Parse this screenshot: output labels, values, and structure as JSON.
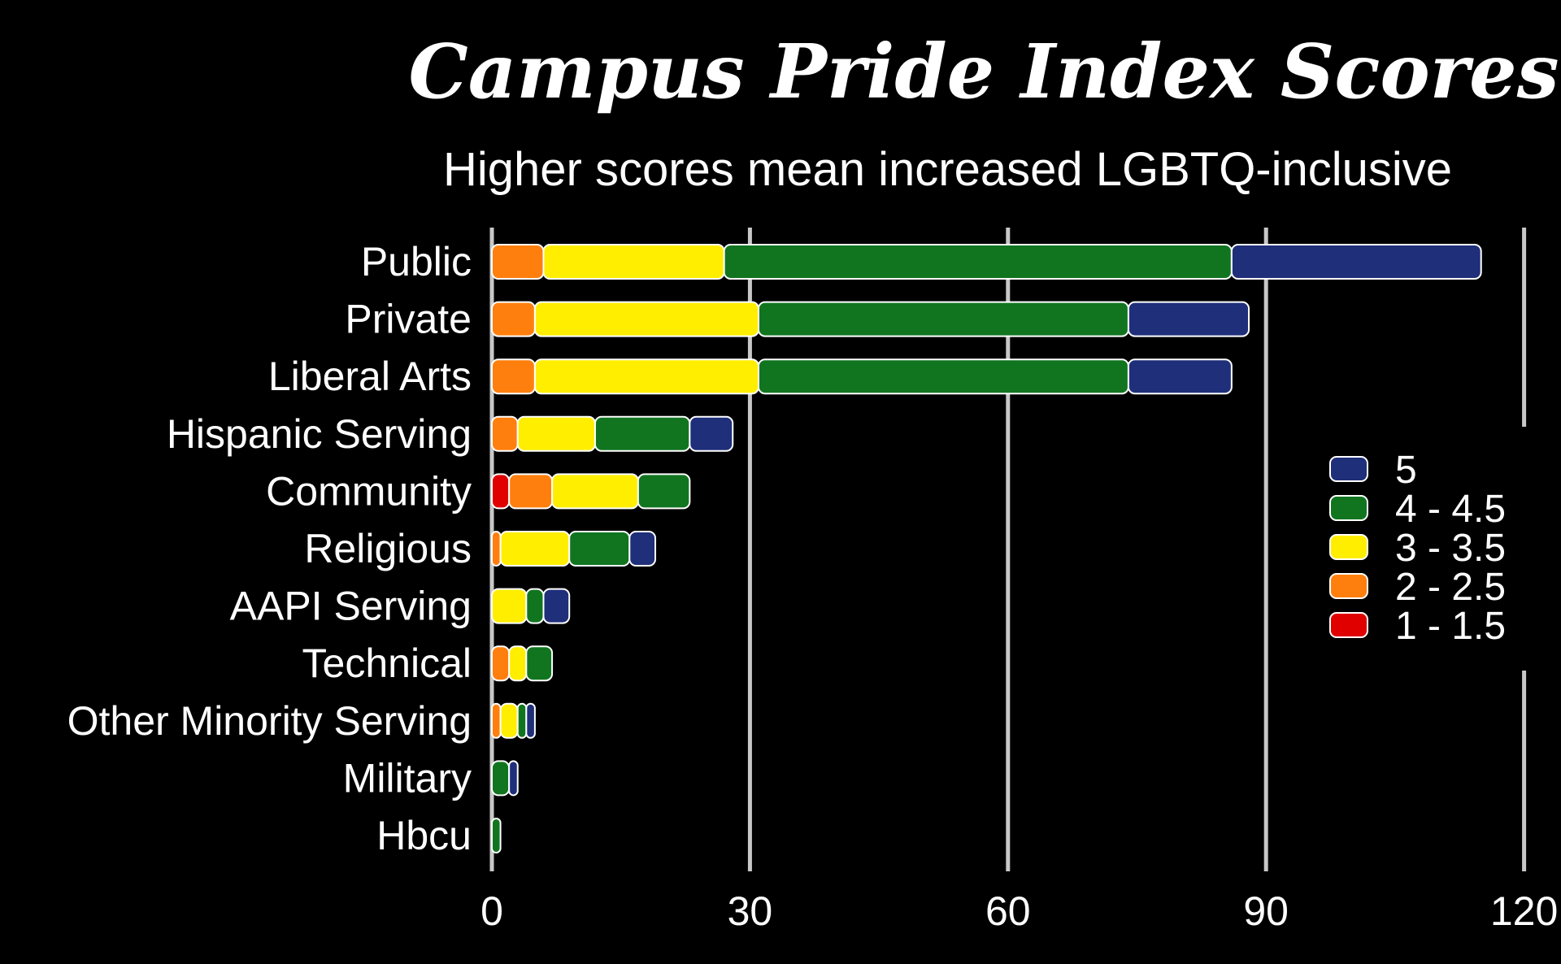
{
  "chart_data": {
    "type": "bar",
    "orientation": "horizontal",
    "stacked": true,
    "title": "Campus Pride Index Scores",
    "subtitle": "Higher scores mean increased LGBTQ-inclusive",
    "xlabel": "",
    "ylabel": "",
    "xlim": [
      0,
      120
    ],
    "x_ticks": [
      "0",
      "30",
      "60",
      "90",
      "120"
    ],
    "grid": "vertical",
    "legend_position": "right",
    "categories": [
      "Public",
      "Private",
      "Liberal Arts",
      "Hispanic Serving",
      "Community",
      "Religious",
      "AAPI Serving",
      "Technical",
      "Other Minority Serving",
      "Military",
      "Hbcu"
    ],
    "series": [
      {
        "name": "1 - 1.5",
        "color": "#e00000",
        "values": [
          0,
          0,
          0,
          0,
          2,
          0,
          0,
          0,
          0,
          0,
          0
        ]
      },
      {
        "name": "2 - 2.5",
        "color": "#ff7f0e",
        "values": [
          6,
          5,
          5,
          3,
          5,
          1,
          0,
          2,
          1,
          0,
          0
        ]
      },
      {
        "name": "3 - 3.5",
        "color": "#ffee00",
        "values": [
          21,
          26,
          26,
          9,
          10,
          8,
          4,
          2,
          2,
          0,
          0
        ]
      },
      {
        "name": "4 - 4.5",
        "color": "#117520",
        "values": [
          59,
          43,
          43,
          11,
          6,
          7,
          2,
          3,
          1,
          2,
          1
        ]
      },
      {
        "name": "5",
        "color": "#1f2f7a",
        "values": [
          29,
          14,
          12,
          5,
          0,
          3,
          3,
          0,
          1,
          1,
          0
        ]
      }
    ],
    "legend_order": [
      "5",
      "4 - 4.5",
      "3 - 3.5",
      "2 - 2.5",
      "1 - 1.5"
    ]
  }
}
